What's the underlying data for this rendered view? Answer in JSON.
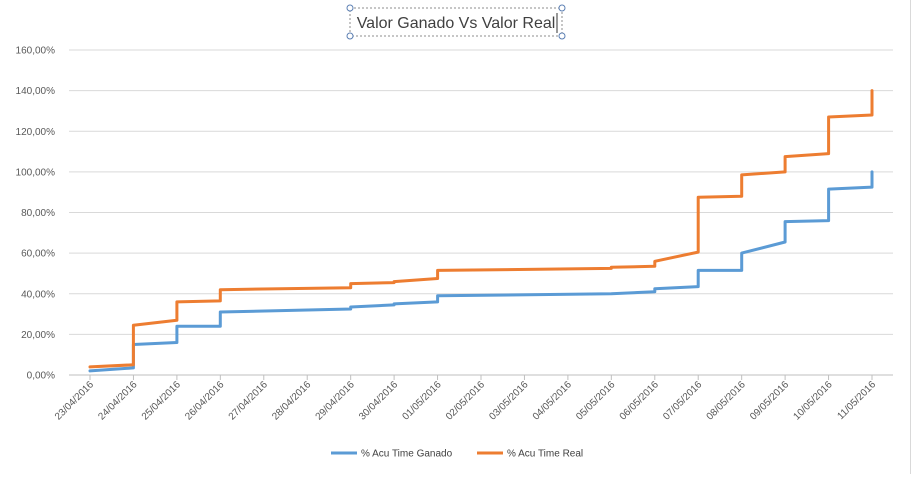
{
  "chart_data": {
    "type": "line",
    "title": "Valor Ganado Vs Valor Real",
    "y_ticks": [
      "0,00%",
      "20,00%",
      "40,00%",
      "60,00%",
      "80,00%",
      "100,00%",
      "120,00%",
      "140,00%",
      "160,00%"
    ],
    "ylim": [
      0,
      160
    ],
    "categories": [
      "23/04/2016",
      "24/04/2016",
      "25/04/2016",
      "26/04/2016",
      "27/04/2016",
      "28/04/2016",
      "29/04/2016",
      "30/04/2016",
      "01/05/2016",
      "02/05/2016",
      "03/05/2016",
      "04/05/2016",
      "05/05/2016",
      "06/05/2016",
      "07/05/2016",
      "08/05/2016",
      "09/05/2016",
      "10/05/2016",
      "11/05/2016"
    ],
    "grid": true,
    "legend_position": "bottom",
    "series": [
      {
        "name": "% Acu Time Ganado",
        "color": "#5b9bd5",
        "points": [
          [
            0,
            2
          ],
          [
            1,
            3.5
          ],
          [
            1,
            15
          ],
          [
            2,
            16
          ],
          [
            2,
            24
          ],
          [
            3,
            24
          ],
          [
            3,
            31
          ],
          [
            6,
            32.5
          ],
          [
            6,
            33.5
          ],
          [
            7,
            34.5
          ],
          [
            7,
            35
          ],
          [
            8,
            36
          ],
          [
            8,
            39
          ],
          [
            12,
            40
          ],
          [
            13,
            41
          ],
          [
            13,
            42.5
          ],
          [
            14,
            43.5
          ],
          [
            14,
            51.5
          ],
          [
            15,
            51.5
          ],
          [
            15,
            60
          ],
          [
            16,
            65.5
          ],
          [
            16,
            75.5
          ],
          [
            17,
            76
          ],
          [
            17,
            91.5
          ],
          [
            18,
            92.5
          ],
          [
            18,
            100
          ]
        ]
      },
      {
        "name": "%  Acu Time Real",
        "color": "#ed7d31",
        "points": [
          [
            0,
            4
          ],
          [
            1,
            5
          ],
          [
            1,
            24.5
          ],
          [
            2,
            27
          ],
          [
            2,
            36
          ],
          [
            3,
            36.5
          ],
          [
            3,
            42
          ],
          [
            6,
            43
          ],
          [
            6,
            45
          ],
          [
            7,
            45.5
          ],
          [
            7,
            46
          ],
          [
            8,
            47.5
          ],
          [
            8,
            51.5
          ],
          [
            12,
            52.5
          ],
          [
            12,
            53
          ],
          [
            13,
            53.5
          ],
          [
            13,
            56
          ],
          [
            14,
            60.5
          ],
          [
            14,
            87.5
          ],
          [
            15,
            88
          ],
          [
            15,
            98.5
          ],
          [
            16,
            100
          ],
          [
            16,
            107.5
          ],
          [
            17,
            109
          ],
          [
            17,
            127
          ],
          [
            18,
            128
          ],
          [
            18,
            140
          ]
        ]
      }
    ]
  }
}
